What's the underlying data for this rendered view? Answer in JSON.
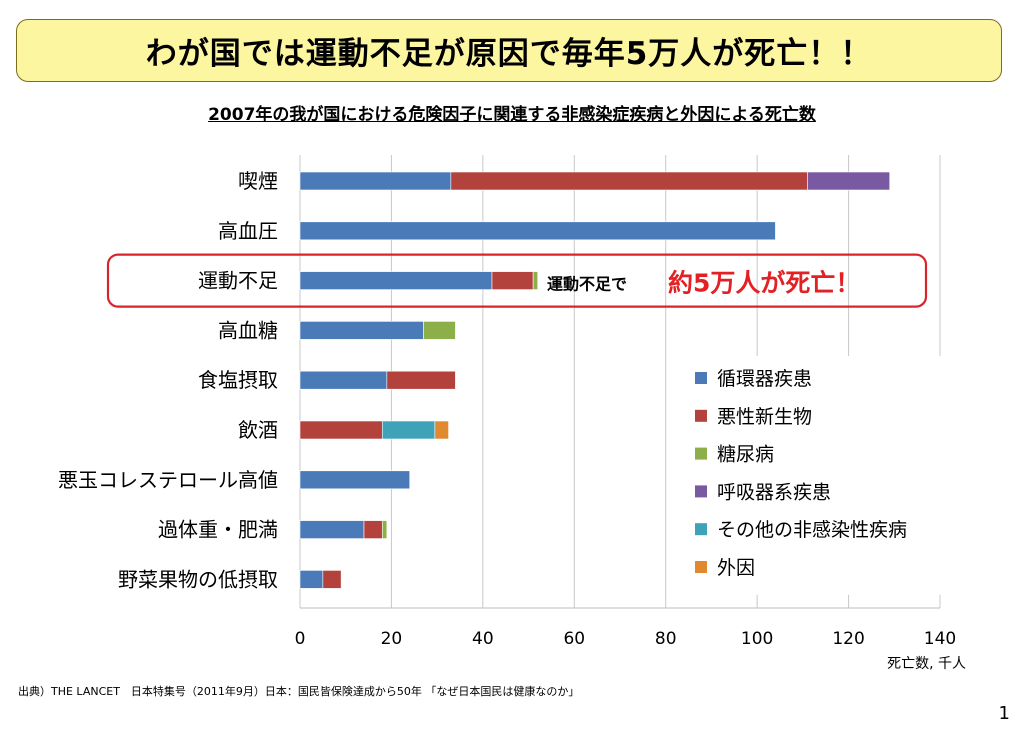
{
  "header": {
    "banner_title": "わが国では運動不足が原因で毎年5万人が死亡！！",
    "chart_title": "2007年の我が国における危険因子に関連する非感染症疾病と外因による死亡数"
  },
  "colors": {
    "banner_bg": "#fdf6a0",
    "highlight_frame": "#d9242b",
    "highlight_text": "#e32124"
  },
  "chart_data": {
    "type": "bar",
    "orientation": "horizontal",
    "stacked": true,
    "title": "2007年の我が国における危険因子に関連する非感染症疾病と外因による死亡数",
    "xlabel": "死亡数, 千人",
    "xlim": [
      0,
      140
    ],
    "xticks": [
      0,
      20,
      40,
      60,
      80,
      100,
      120,
      140
    ],
    "grid": "vertical",
    "legend_position": "right",
    "categories": [
      "喫煙",
      "高血圧",
      "運動不足",
      "高血糖",
      "食塩摂取",
      "飲酒",
      "悪玉コレステロール高値",
      "過体重・肥満",
      "野菜果物の低摂取"
    ],
    "series": [
      {
        "name": "循環器疾患",
        "color": "#4a7ab8",
        "values": [
          33,
          104,
          42,
          27,
          19,
          0,
          24,
          14,
          5
        ]
      },
      {
        "name": "悪性新生物",
        "color": "#b3413c",
        "values": [
          78,
          0,
          9,
          0,
          15,
          18,
          0,
          4,
          4
        ]
      },
      {
        "name": "糖尿病",
        "color": "#8caf4a",
        "values": [
          0,
          0,
          1,
          7,
          0,
          0,
          0,
          1,
          0
        ]
      },
      {
        "name": "呼吸器系疾患",
        "color": "#7a59a3",
        "values": [
          18,
          0,
          0,
          0,
          0,
          0,
          0,
          0,
          0
        ]
      },
      {
        "name": "その他の非感染性疾病",
        "color": "#3ea2b8",
        "values": [
          0,
          0,
          0,
          0,
          0,
          11.5,
          0,
          0,
          0
        ]
      },
      {
        "name": "外因",
        "color": "#e0892f",
        "values": [
          0,
          0,
          0,
          0,
          0,
          3,
          0,
          0,
          0
        ]
      }
    ],
    "annotation": {
      "category": "運動不足",
      "prefix": "運動不足で",
      "emphasis": "約5万人が死亡！"
    }
  },
  "footer": {
    "source": "出典）THE LANCET　日本特集号（2011年9月）日本：国民皆保険達成から50年 「なぜ日本国民は健康なのか」",
    "page_number": "1"
  }
}
